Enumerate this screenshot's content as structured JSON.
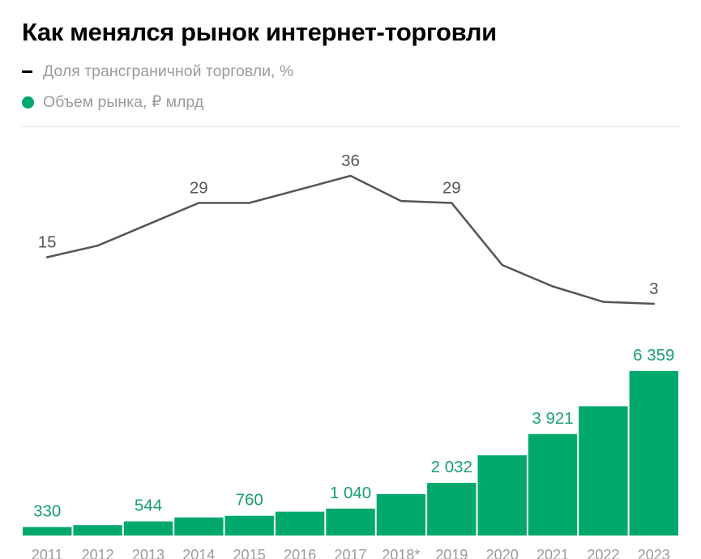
{
  "title": "Как менялся рынок интернет-торговли",
  "legend": {
    "line_label": "Доля трансграничной торговли, %",
    "bar_label": "Объем рынка, ₽ млрд"
  },
  "colors": {
    "bar": "#00a86b",
    "bar_label": "#18a06b",
    "line": "#555555",
    "line_swatch": "#000000",
    "line_label": "#555555",
    "axis_label": "#9b9b9b",
    "divider": "#e2e2e2"
  },
  "chart_data": {
    "type": "bar",
    "categories": [
      "2011",
      "2012",
      "2013",
      "2014",
      "2015",
      "2016",
      "2017",
      "2018*",
      "2019",
      "2020",
      "2021",
      "2022",
      "2023"
    ],
    "series": [
      {
        "name": "Объем рынка, ₽ млрд",
        "type": "bar",
        "values": [
          330,
          400,
          544,
          700,
          760,
          920,
          1040,
          1600,
          2032,
          3100,
          3921,
          5000,
          6359
        ],
        "labels": [
          "330",
          "",
          "544",
          "",
          "760",
          "",
          "1 040",
          "",
          "2 032",
          "",
          "3 921",
          "",
          "6 359"
        ]
      },
      {
        "name": "Доля трансграничной торговли, %",
        "type": "line",
        "values": [
          15,
          18,
          23.5,
          29,
          29,
          32.5,
          36,
          29.5,
          29,
          13,
          7.5,
          3.5,
          3
        ],
        "labels": [
          "15",
          "",
          "",
          "29",
          "",
          "",
          "36",
          "",
          "29",
          "",
          "",
          "",
          "3"
        ]
      }
    ],
    "xlabel": "",
    "ylabel": "",
    "grid": false,
    "legend_position": "top-left"
  }
}
